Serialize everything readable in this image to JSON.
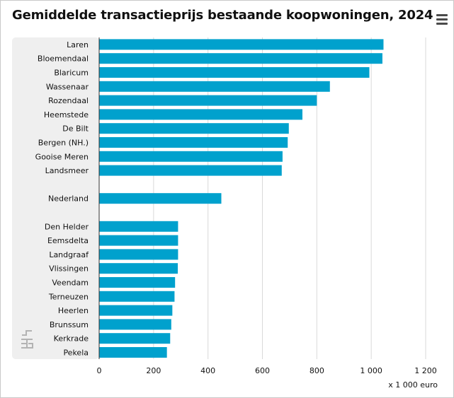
{
  "title": "Gemiddelde transactieprijs bestaande koopwoningen, 2024",
  "menu_icon": "hamburger-menu-icon",
  "logo_icon": "cbs-logo-icon",
  "colors": {
    "bar": "#00a1cd",
    "label_panel": "#efefef",
    "grid": "#d9d9d9",
    "axis": "#333333"
  },
  "chart_data": {
    "type": "bar",
    "orientation": "horizontal",
    "title": "Gemiddelde transactieprijs bestaande koopwoningen, 2024",
    "unit_label": "x 1 000 euro",
    "categories": [
      "Laren",
      "Bloemendaal",
      "Blaricum",
      "Wassenaar",
      "Rozendaal",
      "Heemstede",
      "De Bilt",
      "Bergen (NH.)",
      "Gooise Meren",
      "Landsmeer",
      "",
      "Nederland",
      "",
      "Den Helder",
      "Eemsdelta",
      "Landgraaf",
      "Vlissingen",
      "Veendam",
      "Terneuzen",
      "Heerlen",
      "Brunssum",
      "Kerkrade",
      "Pekela"
    ],
    "values": [
      1045,
      1041,
      993,
      848,
      800,
      747,
      697,
      693,
      674,
      671,
      null,
      449,
      null,
      290,
      290,
      290,
      289,
      279,
      277,
      269,
      265,
      261,
      249
    ],
    "xlim": [
      0,
      1200
    ],
    "xticks": [
      0,
      200,
      400,
      600,
      800,
      1000,
      1200
    ],
    "xtick_labels": [
      "0",
      "200",
      "400",
      "600",
      "800",
      "1 000",
      "1 200"
    ],
    "grid": true
  }
}
